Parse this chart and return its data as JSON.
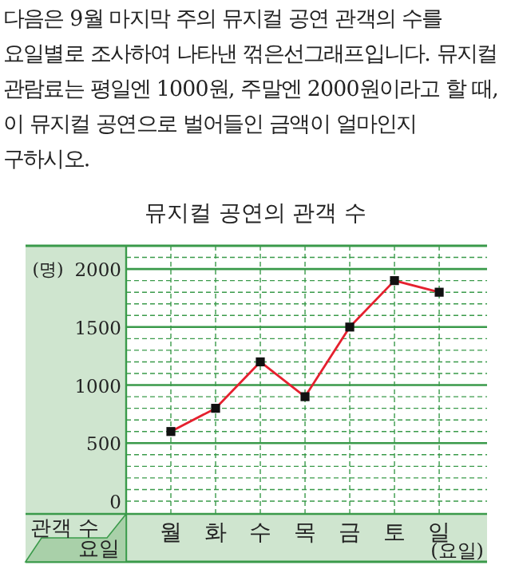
{
  "chart_data": {
    "type": "line",
    "title": "뮤지컬 공연의 관객 수",
    "annotations": [
      "다음은 9월 마지막 주의 뮤지컬 공연 관객의 수를 요일별로 조사하여 나타낸 꺾은선그래프입니다. 뮤지컬 관람료는 평일엔 1000원, 주말엔 2000원이라고 할 때, 이 뮤지컬 공연으로 벌어들인 금액이 얼마인지 구하시오.",
      "관객 수",
      "요일"
    ],
    "xlabel": "(요일)",
    "ylabel": "(명)",
    "categories": [
      "월",
      "화",
      "수",
      "목",
      "금",
      "토",
      "일"
    ],
    "series": [
      {
        "color": "#e5202e",
        "values": [
          600,
          800,
          1200,
          900,
          1500,
          1900,
          1800
        ]
      }
    ],
    "ylim": [
      -110,
      2200
    ],
    "yticks": [
      0,
      500,
      1000,
      1500,
      2000
    ],
    "grid": true,
    "marker": "square",
    "line_style": "solid"
  }
}
